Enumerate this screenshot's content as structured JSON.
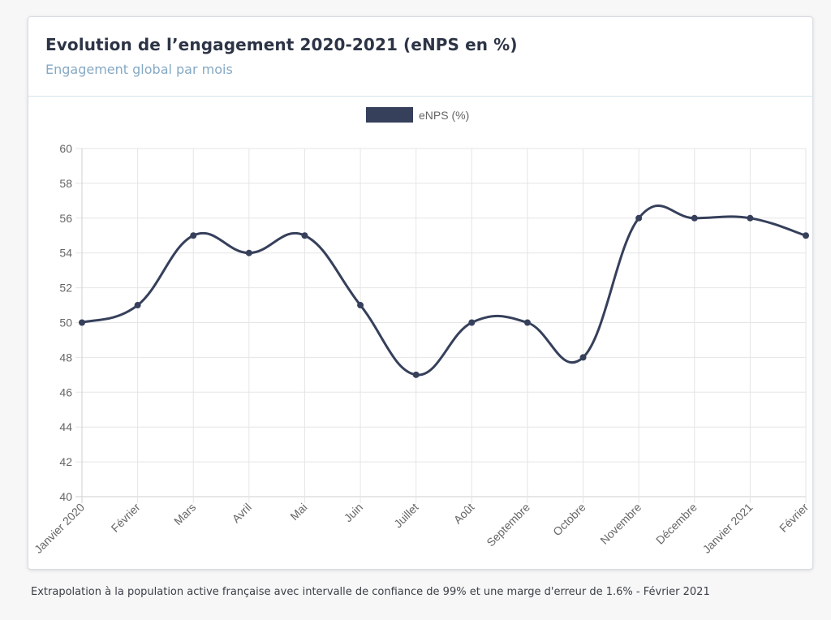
{
  "header": {
    "title": "Evolution de l’engagement 2020-2021 (eNPS en %)",
    "subtitle": "Engagement global par mois"
  },
  "footnote": "Extrapolation à la population active française avec intervalle de confiance de 99% et une marge d'erreur de 1.6% - Février 2021",
  "chart_data": {
    "type": "line",
    "categories": [
      "Janvier 2020",
      "Février",
      "Mars",
      "Avril",
      "Mai",
      "Juin",
      "Juillet",
      "Août",
      "Septembre",
      "Octobre",
      "Novembre",
      "Décembre",
      "Janvier 2021",
      "Février"
    ],
    "series": [
      {
        "name": "eNPS (%)",
        "values": [
          50,
          51,
          55,
          54,
          55,
          51,
          47,
          50,
          50,
          48,
          56,
          56,
          56,
          55
        ]
      }
    ],
    "ylim": [
      40,
      60
    ],
    "yticks": [
      40,
      42,
      44,
      46,
      48,
      50,
      52,
      54,
      56,
      58,
      60
    ],
    "grid": true,
    "legend": "top-center",
    "line_color": "#36405b",
    "grid_color": "#e5e5e5"
  }
}
